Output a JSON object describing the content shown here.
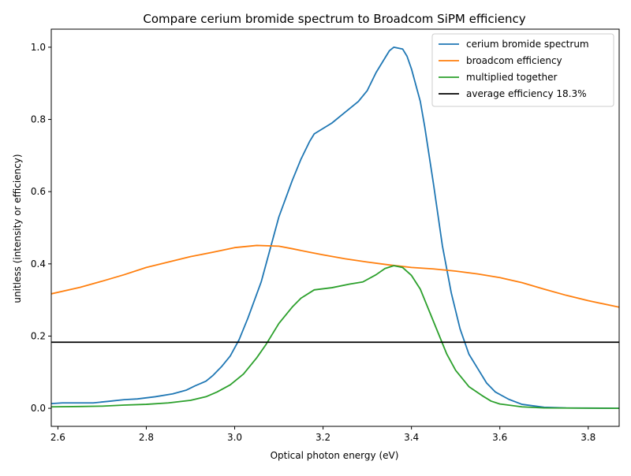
{
  "chart_data": {
    "type": "line",
    "title": "Compare cerium bromide spectrum to Broadcom SiPM efficiency",
    "xlabel": "Optical photon energy (eV)",
    "ylabel": "unitless (intensity or efficiency)",
    "xlim": [
      2.585,
      3.87
    ],
    "ylim": [
      -0.05,
      1.05
    ],
    "xticks": [
      2.6,
      2.8,
      3.0,
      3.2,
      3.4,
      3.6,
      3.8
    ],
    "xtick_labels": [
      "2.6",
      "2.8",
      "3.0",
      "3.2",
      "3.4",
      "3.6",
      "3.8"
    ],
    "yticks": [
      0.0,
      0.2,
      0.4,
      0.6,
      0.8,
      1.0
    ],
    "ytick_labels": [
      "0.0",
      "0.2",
      "0.4",
      "0.6",
      "0.8",
      "1.0"
    ],
    "grid": false,
    "legend_position": "top-right",
    "series": [
      {
        "name": "cerium bromide spectrum",
        "color": "#1f77b4",
        "points": [
          [
            2.585,
            0.013
          ],
          [
            2.61,
            0.015
          ],
          [
            2.65,
            0.015
          ],
          [
            2.68,
            0.015
          ],
          [
            2.72,
            0.02
          ],
          [
            2.75,
            0.024
          ],
          [
            2.78,
            0.026
          ],
          [
            2.82,
            0.032
          ],
          [
            2.86,
            0.04
          ],
          [
            2.89,
            0.05
          ],
          [
            2.91,
            0.062
          ],
          [
            2.935,
            0.075
          ],
          [
            2.95,
            0.09
          ],
          [
            2.97,
            0.115
          ],
          [
            2.99,
            0.145
          ],
          [
            3.01,
            0.19
          ],
          [
            3.03,
            0.25
          ],
          [
            3.06,
            0.35
          ],
          [
            3.08,
            0.44
          ],
          [
            3.1,
            0.53
          ],
          [
            3.13,
            0.63
          ],
          [
            3.15,
            0.69
          ],
          [
            3.17,
            0.74
          ],
          [
            3.18,
            0.76
          ],
          [
            3.2,
            0.775
          ],
          [
            3.22,
            0.79
          ],
          [
            3.24,
            0.81
          ],
          [
            3.26,
            0.83
          ],
          [
            3.28,
            0.85
          ],
          [
            3.3,
            0.88
          ],
          [
            3.32,
            0.93
          ],
          [
            3.34,
            0.97
          ],
          [
            3.35,
            0.99
          ],
          [
            3.36,
            1.0
          ],
          [
            3.38,
            0.995
          ],
          [
            3.39,
            0.975
          ],
          [
            3.4,
            0.94
          ],
          [
            3.42,
            0.85
          ],
          [
            3.43,
            0.78
          ],
          [
            3.45,
            0.62
          ],
          [
            3.47,
            0.45
          ],
          [
            3.49,
            0.32
          ],
          [
            3.51,
            0.22
          ],
          [
            3.53,
            0.15
          ],
          [
            3.55,
            0.11
          ],
          [
            3.57,
            0.07
          ],
          [
            3.59,
            0.045
          ],
          [
            3.62,
            0.025
          ],
          [
            3.65,
            0.011
          ],
          [
            3.7,
            0.003
          ],
          [
            3.75,
            0.001
          ],
          [
            3.87,
            0.0
          ]
        ]
      },
      {
        "name": "broadcom efficiency",
        "color": "#ff7f0e",
        "points": [
          [
            2.585,
            0.317
          ],
          [
            2.65,
            0.335
          ],
          [
            2.7,
            0.352
          ],
          [
            2.75,
            0.37
          ],
          [
            2.8,
            0.39
          ],
          [
            2.85,
            0.405
          ],
          [
            2.9,
            0.42
          ],
          [
            2.95,
            0.432
          ],
          [
            3.0,
            0.445
          ],
          [
            3.05,
            0.451
          ],
          [
            3.1,
            0.449
          ],
          [
            3.13,
            0.442
          ],
          [
            3.17,
            0.432
          ],
          [
            3.2,
            0.425
          ],
          [
            3.25,
            0.414
          ],
          [
            3.3,
            0.405
          ],
          [
            3.35,
            0.397
          ],
          [
            3.4,
            0.39
          ],
          [
            3.45,
            0.386
          ],
          [
            3.5,
            0.38
          ],
          [
            3.55,
            0.372
          ],
          [
            3.6,
            0.362
          ],
          [
            3.65,
            0.348
          ],
          [
            3.7,
            0.33
          ],
          [
            3.75,
            0.313
          ],
          [
            3.8,
            0.298
          ],
          [
            3.87,
            0.28
          ]
        ]
      },
      {
        "name": "multiplied together",
        "color": "#2ca02c",
        "points": [
          [
            2.585,
            0.004
          ],
          [
            2.65,
            0.005
          ],
          [
            2.7,
            0.006
          ],
          [
            2.75,
            0.009
          ],
          [
            2.8,
            0.011
          ],
          [
            2.85,
            0.015
          ],
          [
            2.9,
            0.022
          ],
          [
            2.935,
            0.032
          ],
          [
            2.96,
            0.045
          ],
          [
            2.99,
            0.065
          ],
          [
            3.02,
            0.095
          ],
          [
            3.05,
            0.14
          ],
          [
            3.07,
            0.175
          ],
          [
            3.1,
            0.235
          ],
          [
            3.13,
            0.28
          ],
          [
            3.15,
            0.305
          ],
          [
            3.18,
            0.328
          ],
          [
            3.22,
            0.334
          ],
          [
            3.26,
            0.344
          ],
          [
            3.29,
            0.35
          ],
          [
            3.32,
            0.37
          ],
          [
            3.34,
            0.387
          ],
          [
            3.36,
            0.395
          ],
          [
            3.38,
            0.39
          ],
          [
            3.4,
            0.368
          ],
          [
            3.42,
            0.33
          ],
          [
            3.44,
            0.27
          ],
          [
            3.46,
            0.21
          ],
          [
            3.48,
            0.15
          ],
          [
            3.5,
            0.105
          ],
          [
            3.53,
            0.06
          ],
          [
            3.56,
            0.035
          ],
          [
            3.58,
            0.02
          ],
          [
            3.6,
            0.012
          ],
          [
            3.65,
            0.004
          ],
          [
            3.7,
            0.001
          ],
          [
            3.87,
            0.0
          ]
        ]
      },
      {
        "name": "average efficiency 18.3%",
        "color": "#000000",
        "points": [
          [
            2.585,
            0.183
          ],
          [
            3.87,
            0.183
          ]
        ]
      }
    ]
  }
}
